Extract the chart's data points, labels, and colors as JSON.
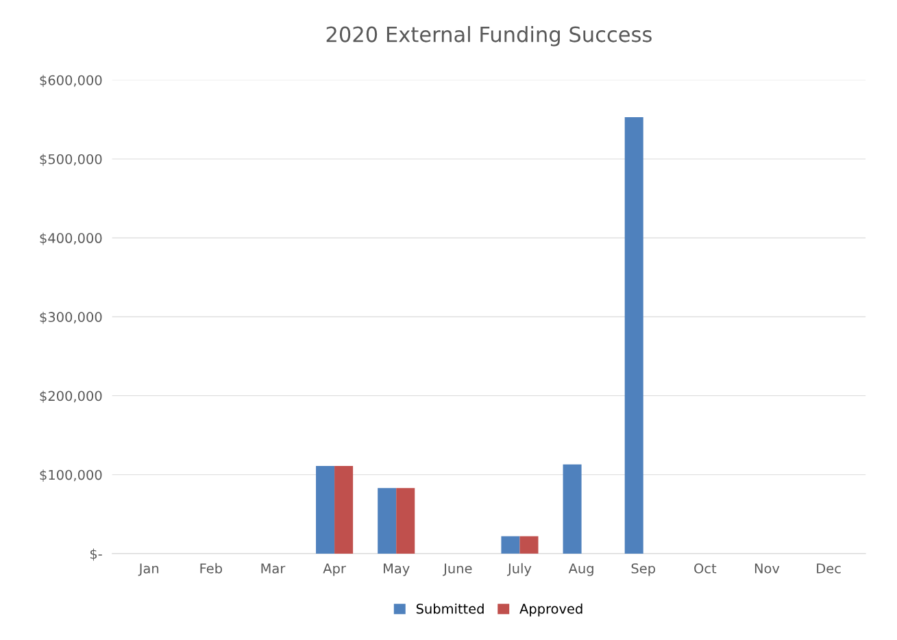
{
  "chart_data": {
    "type": "bar",
    "title": "2020 External Funding Success",
    "categories": [
      "Jan",
      "Feb",
      "Mar",
      "Apr",
      "May",
      "June",
      "July",
      "Aug",
      "Sep",
      "Oct",
      "Nov",
      "Dec"
    ],
    "series": [
      {
        "name": "Submitted",
        "color": "#4f81bd",
        "values": [
          0,
          0,
          0,
          111000,
          83000,
          0,
          22000,
          113000,
          553000,
          0,
          0,
          0
        ]
      },
      {
        "name": "Approved",
        "color": "#c0504d",
        "values": [
          0,
          0,
          0,
          111000,
          83000,
          0,
          22000,
          0,
          0,
          0,
          0,
          0
        ]
      }
    ],
    "ylim": [
      0,
      600000
    ],
    "yticks": [
      {
        "value": 0,
        "label": "$-"
      },
      {
        "value": 100000,
        "label": "$100,000"
      },
      {
        "value": 200000,
        "label": "$200,000"
      },
      {
        "value": 300000,
        "label": "$300,000"
      },
      {
        "value": 400000,
        "label": "$400,000"
      },
      {
        "value": 500000,
        "label": "$500,000"
      },
      {
        "value": 600000,
        "label": "$600,000"
      }
    ],
    "grid": "y",
    "legend": "bottom"
  }
}
